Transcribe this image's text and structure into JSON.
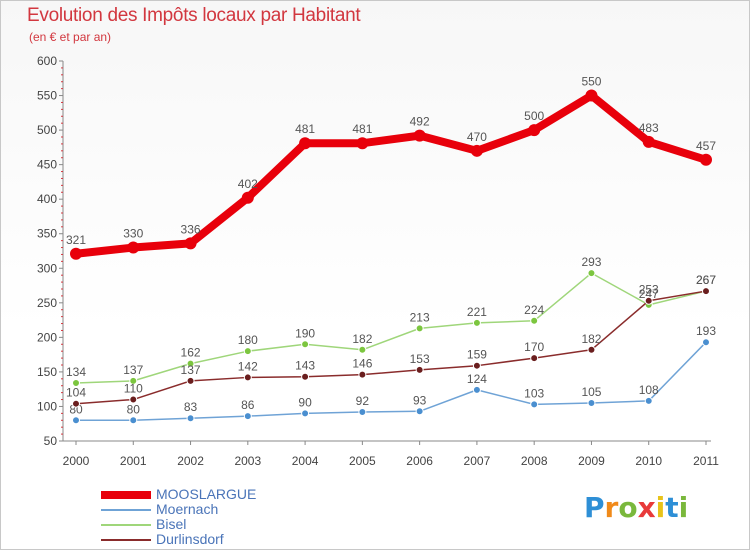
{
  "title": "Evolution des Impôts locaux par Habitant",
  "subtitle": "(en € et par an)",
  "logo": {
    "letters": [
      "P",
      "r",
      "o",
      "x",
      "i",
      "t",
      "i"
    ],
    "colors": [
      "#2e8fd6",
      "#f08a1a",
      "#7ab83c",
      "#e83a3a",
      "#e8c31a",
      "#2e8fd6",
      "#7ab83c"
    ]
  },
  "chart_data": {
    "type": "line",
    "title": "Evolution des Impôts locaux par Habitant",
    "subtitle": "(en € et par an)",
    "xlabel": "",
    "ylabel": "",
    "categories": [
      "2000",
      "2001",
      "2002",
      "2003",
      "2004",
      "2005",
      "2006",
      "2007",
      "2008",
      "2009",
      "2010",
      "2011"
    ],
    "ylim": [
      50,
      600
    ],
    "yticks": [
      50,
      100,
      150,
      200,
      250,
      300,
      350,
      400,
      450,
      500,
      550,
      600
    ],
    "grid": false,
    "legend_position": "bottom-left",
    "series": [
      {
        "name": "MOOSLARGUE",
        "color": "#e8000b",
        "marker_fill": "#e8000b",
        "emphasis": "thick",
        "values": [
          321,
          330,
          336,
          402,
          481,
          481,
          492,
          470,
          500,
          550,
          483,
          457
        ],
        "labels": [
          "321",
          "330",
          "336",
          "402",
          "481",
          "481",
          "492",
          "470",
          "500",
          "550",
          "483",
          "457"
        ]
      },
      {
        "name": "Moernach",
        "color": "#6fa3d6",
        "marker_fill": "#4a8fd0",
        "emphasis": "thin",
        "values": [
          80,
          80,
          83,
          86,
          90,
          92,
          93,
          124,
          103,
          105,
          108,
          193
        ],
        "labels": [
          "80",
          "80",
          "83",
          "86",
          "90",
          "92",
          "93",
          "124",
          "103",
          "105",
          "108",
          "193"
        ]
      },
      {
        "name": "Bisel",
        "color": "#9fd67a",
        "marker_fill": "#7cc63f",
        "emphasis": "thin",
        "values": [
          134,
          137,
          162,
          180,
          190,
          182,
          213,
          221,
          224,
          293,
          247,
          267
        ],
        "labels": [
          "134",
          "137",
          "162",
          "180",
          "190",
          "182",
          "213",
          "221",
          "224",
          "293",
          "247",
          "267"
        ]
      },
      {
        "name": "Durlinsdorf",
        "color": "#8a2c2c",
        "marker_fill": "#6a1e1e",
        "emphasis": "thin",
        "values": [
          104,
          110,
          137,
          142,
          143,
          146,
          153,
          159,
          170,
          182,
          253,
          267
        ],
        "labels": [
          "104",
          "110",
          "137",
          "142",
          "143",
          "146",
          "153",
          "159",
          "170",
          "182",
          "253",
          "267"
        ]
      }
    ]
  }
}
